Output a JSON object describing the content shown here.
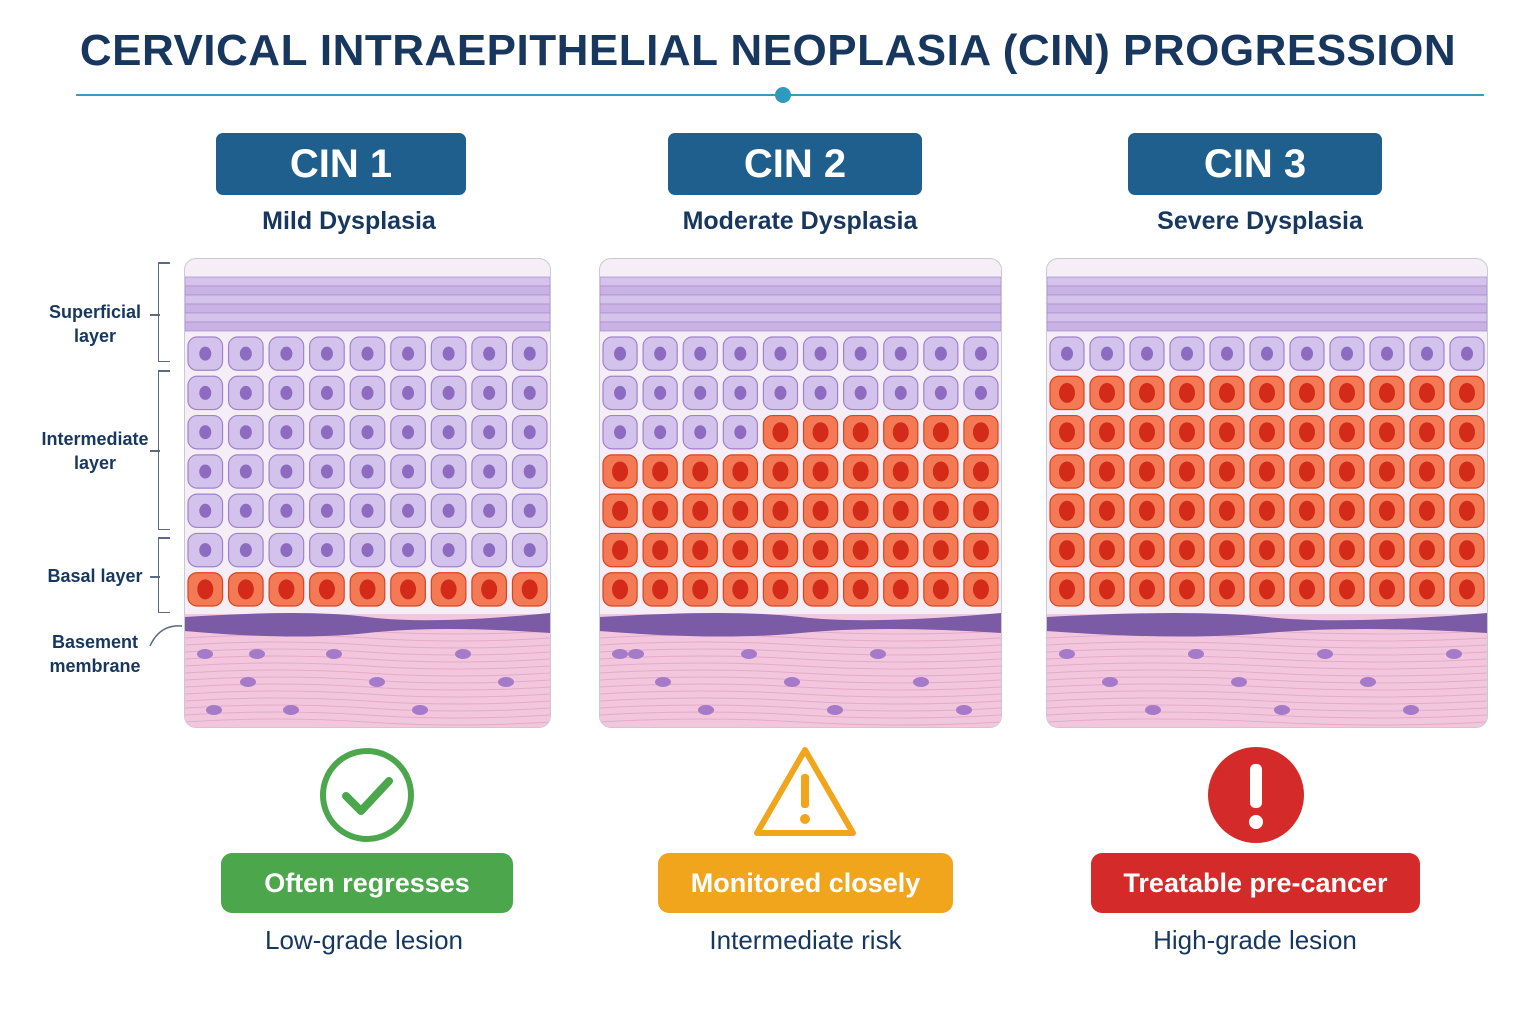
{
  "title": "CERVICAL INTRAEPITHELIAL NEOPLASIA (CIN) PROGRESSION",
  "layer_labels": {
    "superficial": "Superficial\nlayer",
    "intermediate": "Intermediate\nlayer",
    "basal": "Basal layer",
    "basement": "Basement\nmembrane"
  },
  "stages": [
    {
      "badge": "CIN 1",
      "subtitle": "Mild Dysplasia",
      "status_label": "Often regresses",
      "status_note": "Low-grade lesion",
      "status_icon": "check-circle-icon",
      "status_color": "#4ca64c",
      "abnormal_fraction": 0.12
    },
    {
      "badge": "CIN 2",
      "subtitle": "Moderate Dysplasia",
      "status_label": "Monitored closely",
      "status_note": "Intermediate risk",
      "status_icon": "warning-triangle-icon",
      "status_color": "#f0a51c",
      "abnormal_fraction": 0.5
    },
    {
      "badge": "CIN 3",
      "subtitle": "Severe Dysplasia",
      "status_label": "Treatable pre-cancer",
      "status_note": "High-grade lesion",
      "status_icon": "exclamation-circle-icon",
      "status_color": "#d42a2a",
      "abnormal_fraction": 0.9
    }
  ],
  "colors": {
    "badge": "#1e5f8e",
    "normal_cell": "#c7b3e6",
    "abnormal_cell": "#f05a32",
    "membrane": "#7b5aa6",
    "stroma": "#f2c7de"
  }
}
